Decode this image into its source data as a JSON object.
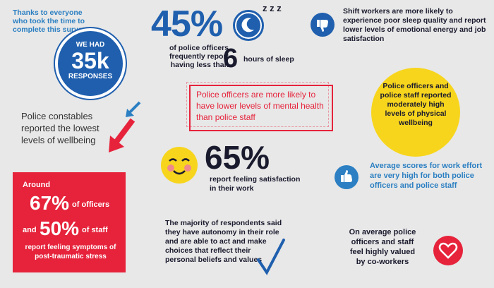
{
  "thanks": {
    "text": "Thanks to everyone who took the time to complete this survey"
  },
  "responses": {
    "we_had": "WE HAD",
    "count": "35k",
    "label": "RESPONSES"
  },
  "sleep": {
    "percent": "45%",
    "text": "of police officers frequently report having less than",
    "six": "6",
    "hours": "hours of sleep",
    "zzz": "z z z"
  },
  "shift": {
    "text": "Shift workers are more likely to experience poor sleep quality and report lower levels of emotional energy and job satisfaction"
  },
  "mental_health": {
    "text": "Police officers are more likely to have lower levels of mental health than police staff"
  },
  "physical": {
    "text": "Police officers and police staff reported moderately high levels of physical wellbeing"
  },
  "constables": {
    "text": "Police constables reported the lowest levels of wellbeing"
  },
  "satisfaction": {
    "percent": "65%",
    "text": "report feeling satisfaction in their work"
  },
  "effort": {
    "text": "Average scores for work effort are very high for both police officers and police staff"
  },
  "ptsd": {
    "around": "Around",
    "p67": "67%",
    "of_officers": "of officers",
    "and": "and",
    "p50": "50%",
    "of_staff": "of staff",
    "report": "report feeling symptoms of post-traumatic stress"
  },
  "autonomy": {
    "text": "The majority of respondents said they have autonomy in their role and are able to act and make choices that reflect their personal beliefs and values"
  },
  "valued": {
    "text": "On average police officers and staff feel highly valued by co-workers"
  },
  "colors": {
    "blue": "#1f5fae",
    "light_blue": "#2b7fc2",
    "red": "#e6233b",
    "yellow": "#f7d51d",
    "background": "#e8e8e8"
  },
  "icons": [
    "moon-icon",
    "thumbs-down-icon",
    "arrow-down-left-icon",
    "smiley-icon",
    "thumbs-up-icon",
    "checkmark-icon",
    "heart-icon"
  ]
}
